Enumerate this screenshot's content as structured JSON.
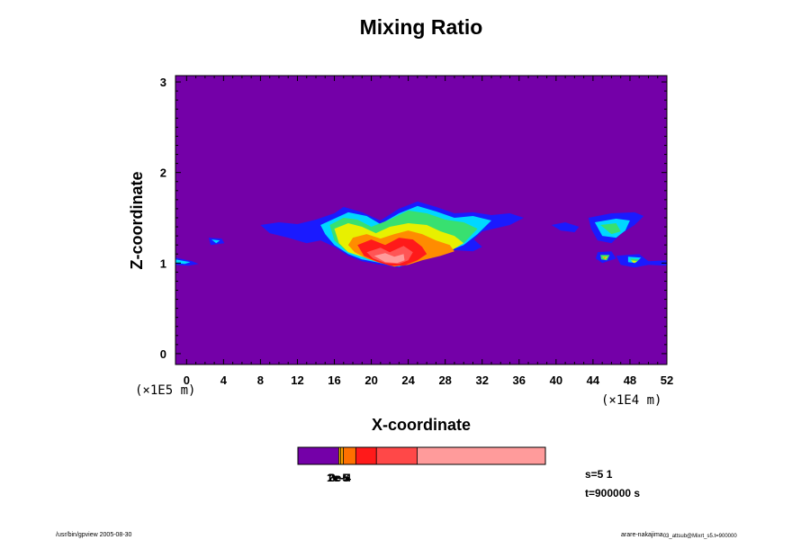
{
  "chart_data": {
    "type": "heatmap",
    "title": "Mixing Ratio",
    "xlabel": "X-coordinate",
    "ylabel": "Z-coordinate",
    "x_scale_label": "(×1E4 m)",
    "y_scale_label": "(×1E5 m)",
    "xlim": [
      -1.2,
      52
    ],
    "ylim": [
      -0.12,
      3.07
    ],
    "x_ticks": [
      0,
      4,
      8,
      12,
      16,
      20,
      24,
      28,
      32,
      36,
      40,
      44,
      48,
      52
    ],
    "x_tick_labels": [
      "0",
      "4",
      "8",
      "12",
      "16",
      "20",
      "24",
      "28",
      "32",
      "36",
      "40",
      "44",
      "48",
      "52"
    ],
    "y_ticks": [
      0,
      1,
      2,
      3
    ],
    "y_tick_labels": [
      "0",
      "1",
      "2",
      "3"
    ],
    "background_color": "#7400a8",
    "colorbar": {
      "segments": [
        {
          "color": "#7400a8",
          "fraction": 0.165
        },
        {
          "color": "#ffd000",
          "fraction": 0.007
        },
        {
          "color": "#ffa000",
          "fraction": 0.012
        },
        {
          "color": "#ff7000",
          "fraction": 0.05
        },
        {
          "color": "#ff1a1a",
          "fraction": 0.083
        },
        {
          "color": "#ff4848",
          "fraction": 0.165
        },
        {
          "color": "#ff9b9b",
          "fraction": 0.518
        }
      ],
      "labels": [
        "1e-5",
        "2e-5",
        "3e-4"
      ]
    },
    "regions": [
      {
        "level": "blue",
        "color": "#1a1aff",
        "polygons": [
          [
            [
              8,
              1.42
            ],
            [
              10,
              1.45
            ],
            [
              12,
              1.43
            ],
            [
              14,
              1.48
            ],
            [
              16,
              1.55
            ],
            [
              17,
              1.62
            ],
            [
              19,
              1.56
            ],
            [
              21,
              1.47
            ],
            [
              23,
              1.6
            ],
            [
              25,
              1.68
            ],
            [
              27,
              1.62
            ],
            [
              29,
              1.55
            ],
            [
              31,
              1.56
            ],
            [
              33,
              1.53
            ],
            [
              35,
              1.55
            ],
            [
              36.5,
              1.5
            ],
            [
              35,
              1.42
            ],
            [
              32,
              1.35
            ],
            [
              31,
              1.25
            ],
            [
              29,
              1.15
            ],
            [
              27,
              1.08
            ],
            [
              25,
              1.02
            ],
            [
              23,
              0.95
            ],
            [
              21,
              0.98
            ],
            [
              19,
              1.02
            ],
            [
              17.5,
              1.08
            ],
            [
              16,
              1.18
            ],
            [
              14.5,
              1.25
            ],
            [
              13,
              1.22
            ],
            [
              11,
              1.28
            ],
            [
              9,
              1.33
            ]
          ],
          [
            [
              2.4,
              1.28
            ],
            [
              3.8,
              1.27
            ],
            [
              4.1,
              1.22
            ],
            [
              2.6,
              1.2
            ]
          ],
          [
            [
              -1.2,
              1.06
            ],
            [
              0.6,
              1.02
            ],
            [
              1.3,
              0.99
            ],
            [
              0.2,
              0.97
            ],
            [
              -1.2,
              0.98
            ]
          ],
          [
            [
              39.5,
              1.42
            ],
            [
              41,
              1.45
            ],
            [
              42.5,
              1.4
            ],
            [
              42,
              1.34
            ],
            [
              40.5,
              1.36
            ]
          ],
          [
            [
              43.5,
              1.5
            ],
            [
              46,
              1.55
            ],
            [
              48.5,
              1.56
            ],
            [
              49.5,
              1.52
            ],
            [
              48.5,
              1.42
            ],
            [
              47,
              1.32
            ],
            [
              46,
              1.22
            ],
            [
              44.5,
              1.25
            ],
            [
              43.8,
              1.38
            ]
          ],
          [
            [
              44.5,
              1.12
            ],
            [
              46,
              1.13
            ],
            [
              46.5,
              1.05
            ],
            [
              45,
              1.0
            ],
            [
              44.3,
              1.05
            ]
          ],
          [
            [
              46.5,
              1.08
            ],
            [
              49,
              1.1
            ],
            [
              50,
              1.02
            ],
            [
              52,
              1.03
            ],
            [
              52,
              0.97
            ],
            [
              50,
              0.98
            ],
            [
              48.5,
              0.95
            ],
            [
              47,
              0.98
            ]
          ],
          [
            [
              27,
              1.3
            ],
            [
              29,
              1.3
            ],
            [
              31,
              1.27
            ],
            [
              32,
              1.18
            ],
            [
              31,
              1.13
            ],
            [
              28,
              1.15
            ]
          ]
        ]
      },
      {
        "level": "cyan",
        "color": "#00d8ff",
        "polygons": [
          [
            [
              14.5,
              1.42
            ],
            [
              16.2,
              1.5
            ],
            [
              17.5,
              1.56
            ],
            [
              19.5,
              1.52
            ],
            [
              21,
              1.43
            ],
            [
              23,
              1.55
            ],
            [
              25,
              1.63
            ],
            [
              27,
              1.57
            ],
            [
              29,
              1.5
            ],
            [
              31,
              1.52
            ],
            [
              33,
              1.47
            ],
            [
              31.5,
              1.32
            ],
            [
              30,
              1.2
            ],
            [
              27.5,
              1.1
            ],
            [
              25,
              1.03
            ],
            [
              23,
              0.96
            ],
            [
              21,
              1.0
            ],
            [
              19,
              1.04
            ],
            [
              17.5,
              1.1
            ],
            [
              16,
              1.2
            ],
            [
              15,
              1.32
            ]
          ],
          [
            [
              44.2,
              1.45
            ],
            [
              46.5,
              1.49
            ],
            [
              48,
              1.47
            ],
            [
              47.5,
              1.36
            ],
            [
              46.5,
              1.28
            ],
            [
              45,
              1.3
            ]
          ],
          [
            [
              -1.2,
              1.04
            ],
            [
              0.4,
              1.01
            ],
            [
              -0.2,
              0.99
            ],
            [
              -1.2,
              1.0
            ]
          ],
          [
            [
              2.7,
              1.26
            ],
            [
              3.6,
              1.25
            ],
            [
              3.2,
              1.22
            ]
          ],
          [
            [
              47.8,
              1.07
            ],
            [
              49.2,
              1.06
            ],
            [
              48.6,
              1.0
            ],
            [
              47.8,
              1.01
            ]
          ]
        ]
      },
      {
        "level": "green",
        "color": "#38e070",
        "polygons": [
          [
            [
              15.5,
              1.42
            ],
            [
              17,
              1.5
            ],
            [
              18.5,
              1.48
            ],
            [
              20,
              1.4
            ],
            [
              22,
              1.48
            ],
            [
              24,
              1.58
            ],
            [
              26,
              1.55
            ],
            [
              28,
              1.48
            ],
            [
              30,
              1.45
            ],
            [
              31.5,
              1.38
            ],
            [
              30,
              1.22
            ],
            [
              27.5,
              1.12
            ],
            [
              25,
              1.04
            ],
            [
              23,
              0.98
            ],
            [
              21,
              1.02
            ],
            [
              19,
              1.07
            ],
            [
              17.2,
              1.14
            ],
            [
              16,
              1.25
            ]
          ],
          [
            [
              44.8,
              1.42
            ],
            [
              46.5,
              1.44
            ],
            [
              47,
              1.35
            ],
            [
              46,
              1.32
            ]
          ],
          [
            [
              44.8,
              1.09
            ],
            [
              45.8,
              1.09
            ],
            [
              45.5,
              1.03
            ],
            [
              44.9,
              1.04
            ]
          ],
          [
            [
              48,
              1.05
            ],
            [
              49,
              1.04
            ],
            [
              48.5,
              1.0
            ]
          ]
        ]
      },
      {
        "level": "yellow",
        "color": "#e8f000",
        "polygons": [
          [
            [
              16,
              1.38
            ],
            [
              17.5,
              1.44
            ],
            [
              19,
              1.4
            ],
            [
              20.5,
              1.33
            ],
            [
              22,
              1.4
            ],
            [
              24,
              1.44
            ],
            [
              26,
              1.42
            ],
            [
              27.5,
              1.35
            ],
            [
              29,
              1.3
            ],
            [
              30,
              1.22
            ],
            [
              28.5,
              1.13
            ],
            [
              26,
              1.06
            ],
            [
              24,
              1.0
            ],
            [
              22.5,
              0.97
            ],
            [
              21,
              1.02
            ],
            [
              19,
              1.07
            ],
            [
              17.5,
              1.12
            ],
            [
              16.5,
              1.22
            ]
          ],
          [
            [
              45,
              1.07
            ],
            [
              45.6,
              1.07
            ],
            [
              45.3,
              1.04
            ]
          ],
          [
            [
              48.1,
              1.03
            ],
            [
              48.8,
              1.02
            ],
            [
              48.4,
              1.0
            ]
          ]
        ]
      },
      {
        "level": "orange",
        "color": "#ff8c00",
        "polygons": [
          [
            [
              18,
              1.28
            ],
            [
              19.5,
              1.32
            ],
            [
              21,
              1.27
            ],
            [
              22.5,
              1.32
            ],
            [
              24,
              1.36
            ],
            [
              25.5,
              1.32
            ],
            [
              27,
              1.25
            ],
            [
              28.5,
              1.2
            ],
            [
              29,
              1.13
            ],
            [
              27.5,
              1.08
            ],
            [
              25.5,
              1.03
            ],
            [
              24,
              0.98
            ],
            [
              22.5,
              0.96
            ],
            [
              21,
              1.0
            ],
            [
              19.5,
              1.05
            ],
            [
              18.2,
              1.12
            ],
            [
              17.5,
              1.2
            ]
          ],
          [
            [
              45.1,
              1.065
            ],
            [
              45.4,
              1.065
            ],
            [
              45.25,
              1.045
            ]
          ]
        ]
      },
      {
        "level": "red",
        "color": "#ff1a1a",
        "polygons": [
          [
            [
              18.5,
              1.2
            ],
            [
              20,
              1.26
            ],
            [
              21.5,
              1.2
            ],
            [
              23,
              1.28
            ],
            [
              24.5,
              1.26
            ],
            [
              25.5,
              1.18
            ],
            [
              26,
              1.1
            ],
            [
              25,
              1.03
            ],
            [
              23.5,
              0.97
            ],
            [
              22,
              0.97
            ],
            [
              20.5,
              1.02
            ],
            [
              19.2,
              1.08
            ]
          ]
        ]
      },
      {
        "level": "lightred",
        "color": "#ff5555",
        "polygons": [
          [
            [
              19.5,
              1.12
            ],
            [
              21,
              1.17
            ],
            [
              22,
              1.12
            ],
            [
              23.5,
              1.19
            ],
            [
              24.5,
              1.12
            ],
            [
              24,
              1.03
            ],
            [
              23,
              0.99
            ],
            [
              21.5,
              1.0
            ],
            [
              20.2,
              1.05
            ]
          ]
        ]
      },
      {
        "level": "pink",
        "color": "#ff9b9b",
        "polygons": [
          [
            [
              20.3,
              1.08
            ],
            [
              21.5,
              1.11
            ],
            [
              22.5,
              1.07
            ],
            [
              23.5,
              1.1
            ],
            [
              23.6,
              1.03
            ],
            [
              22.8,
              1.0
            ],
            [
              21.5,
              1.01
            ]
          ]
        ]
      }
    ]
  },
  "info": {
    "s_label": "s=5 1",
    "t_label": "t=900000 s"
  },
  "footer": {
    "left": "/usr/bin/gpview 2005-08-30",
    "right_main": "arare-nakajima",
    "right_sub": "03_attsub@Mixrt_s5.t=900000"
  }
}
